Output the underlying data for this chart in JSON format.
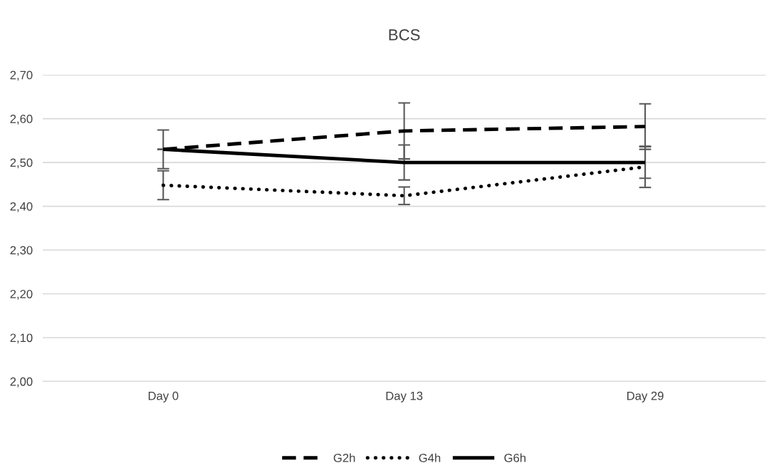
{
  "chart_data": {
    "type": "line",
    "title": "BCS",
    "categories": [
      "Day 0",
      "Day 13",
      "Day 29"
    ],
    "series": [
      {
        "name": "G2h",
        "color": "#000000",
        "line_style": "dashed",
        "values": [
          2.53,
          2.572,
          2.582
        ],
        "errors": [
          null,
          0.064,
          0.052
        ]
      },
      {
        "name": "G4h",
        "color": "#000000",
        "line_style": "dotted",
        "values": [
          2.448,
          2.424,
          2.49
        ],
        "errors": [
          0.033,
          0.02,
          0.047
        ]
      },
      {
        "name": "G6h",
        "color": "#000000",
        "line_style": "solid",
        "values": [
          2.53,
          2.5,
          2.5
        ],
        "errors": [
          0.044,
          0.04,
          0.036
        ]
      }
    ],
    "ylim": [
      2.0,
      2.7
    ],
    "yticks": [
      {
        "value": 2.0,
        "label": "2,00"
      },
      {
        "value": 2.1,
        "label": "2,10"
      },
      {
        "value": 2.2,
        "label": "2,20"
      },
      {
        "value": 2.3,
        "label": "2,30"
      },
      {
        "value": 2.4,
        "label": "2,40"
      },
      {
        "value": 2.5,
        "label": "2,50"
      },
      {
        "value": 2.6,
        "label": "2,60"
      },
      {
        "value": 2.7,
        "label": "2,70"
      }
    ],
    "grid": "y",
    "legend": "bottom",
    "marker": "none"
  }
}
